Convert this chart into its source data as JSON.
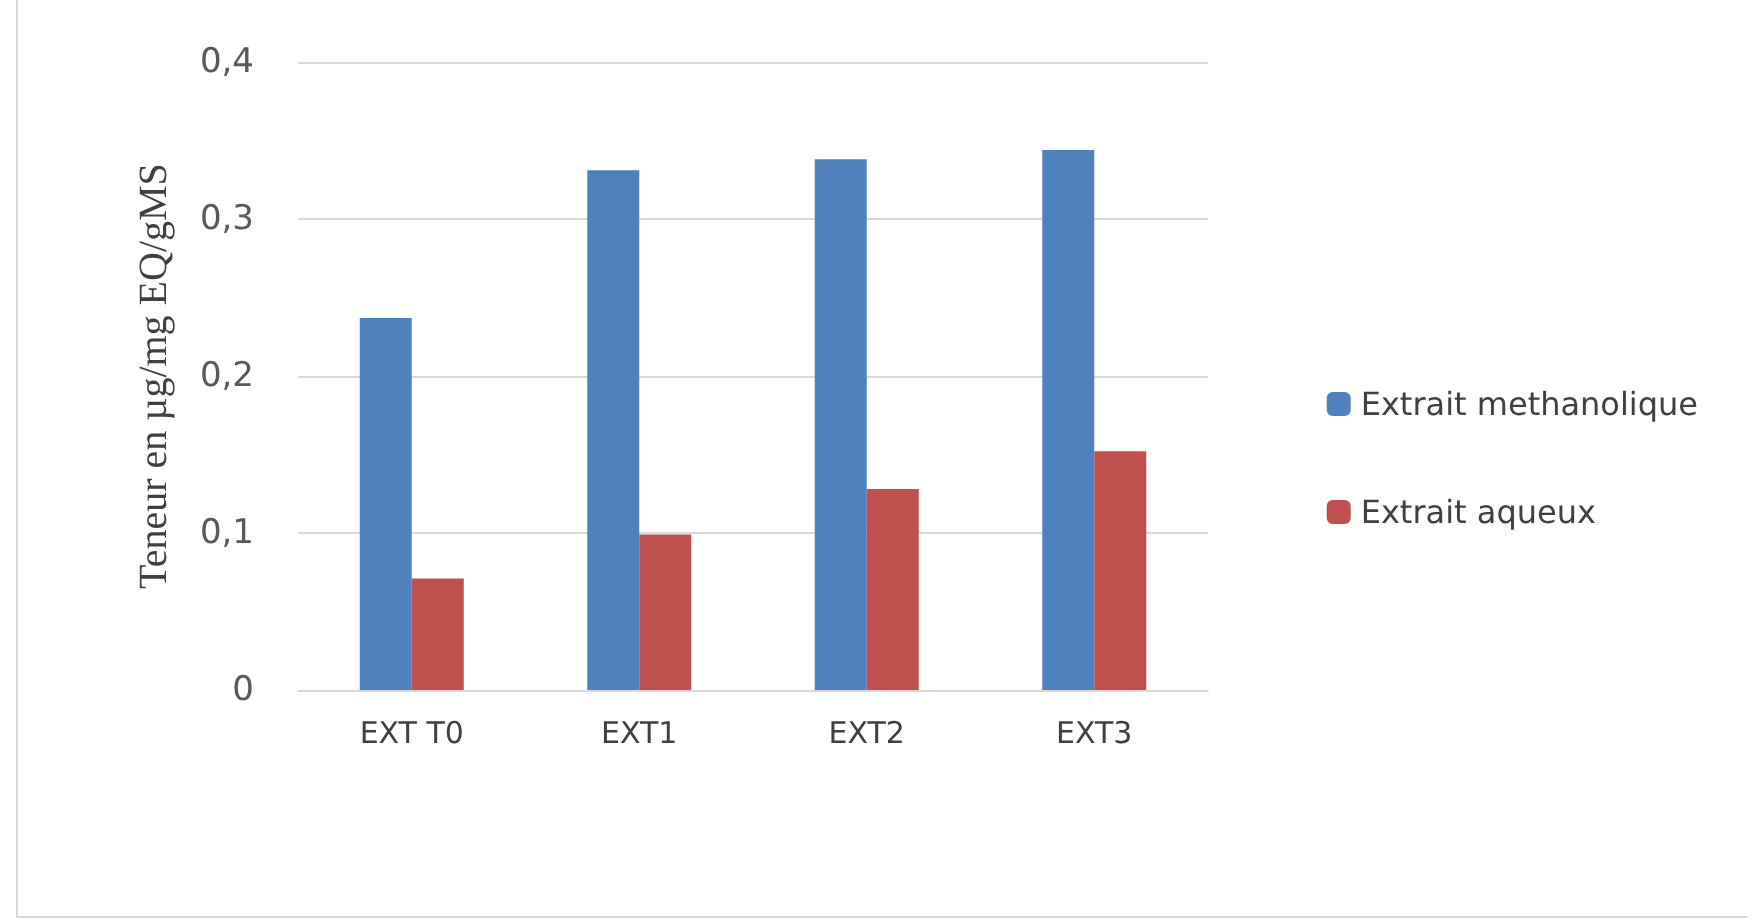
{
  "chart_data": {
    "type": "bar",
    "ylabel": "Teneur en µg/mg EQ/gMS",
    "categories": [
      "EXT T0",
      "EXT1",
      "EXT2",
      "EXT3"
    ],
    "series": [
      {
        "name": "Extrait methanolique",
        "color": "#4f81bd",
        "values": [
          0.237,
          0.331,
          0.338,
          0.344
        ]
      },
      {
        "name": "Extrait aqueux",
        "color": "#c0504d",
        "values": [
          0.071,
          0.099,
          0.128,
          0.152
        ]
      }
    ],
    "ylim": [
      0,
      0.4
    ],
    "yticks": [
      {
        "value": 0,
        "label": "0"
      },
      {
        "value": 0.1,
        "label": "0,1"
      },
      {
        "value": 0.2,
        "label": "0,2"
      },
      {
        "value": 0.3,
        "label": "0,3"
      },
      {
        "value": 0.4,
        "label": "0,4"
      }
    ],
    "grid": "y",
    "legend": "right"
  }
}
